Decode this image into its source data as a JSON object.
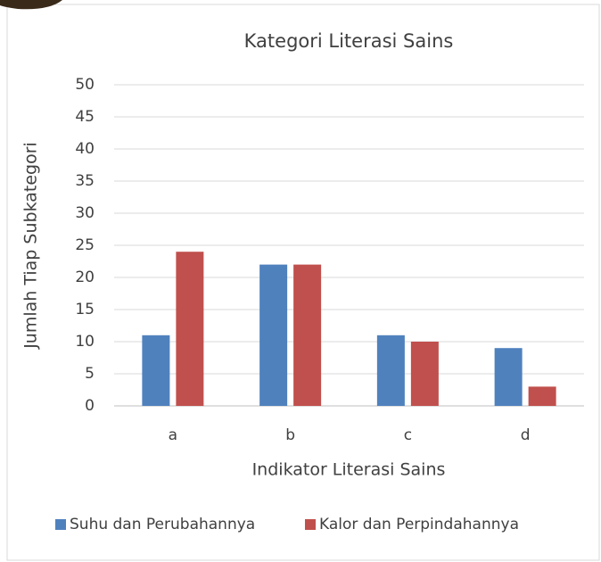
{
  "chart_data": {
    "type": "bar",
    "title": "Kategori Literasi Sains",
    "x_label": "Indikator Literasi Sains",
    "y_label": "Jumlah Tiap Subkategori",
    "categories": [
      "a",
      "b",
      "c",
      "d"
    ],
    "series": [
      {
        "name": "Suhu dan Perubahannya",
        "color": "#4f81bd",
        "values": [
          11,
          22,
          11,
          9
        ]
      },
      {
        "name": "Kalor dan Perpindahannya",
        "color": "#c0504d",
        "values": [
          24,
          22,
          10,
          3
        ]
      }
    ],
    "ylim": [
      0,
      50
    ],
    "yticks": [
      0,
      5,
      10,
      15,
      20,
      25,
      30,
      35,
      40,
      45,
      50
    ],
    "grid": true,
    "legend": "bottom"
  }
}
